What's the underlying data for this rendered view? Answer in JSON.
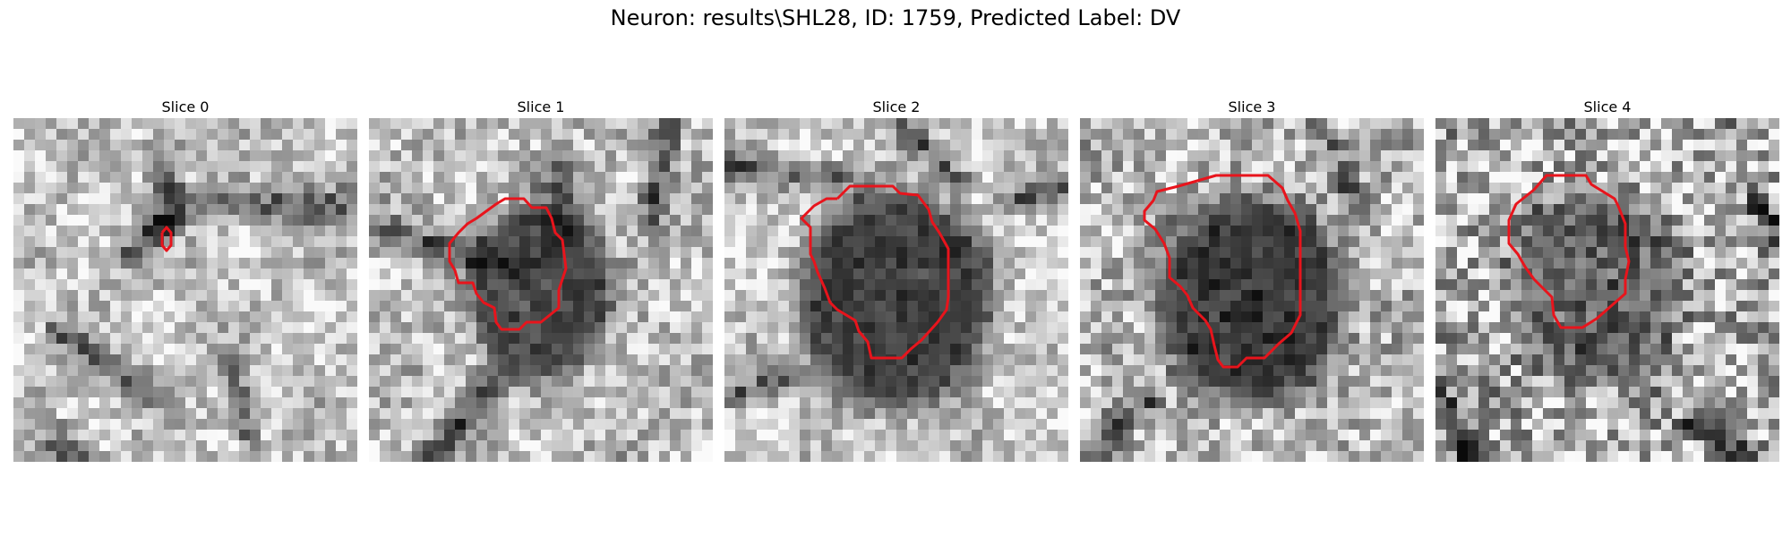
{
  "figure": {
    "title": "Neuron: results\\SHL28, ID: 1759, Predicted Label: DV",
    "contour_color": "#e8141c"
  },
  "slices": [
    {
      "title": "Slice 0"
    },
    {
      "title": "Slice 1"
    },
    {
      "title": "Slice 2"
    },
    {
      "title": "Slice 3"
    },
    {
      "title": "Slice 4"
    }
  ]
}
